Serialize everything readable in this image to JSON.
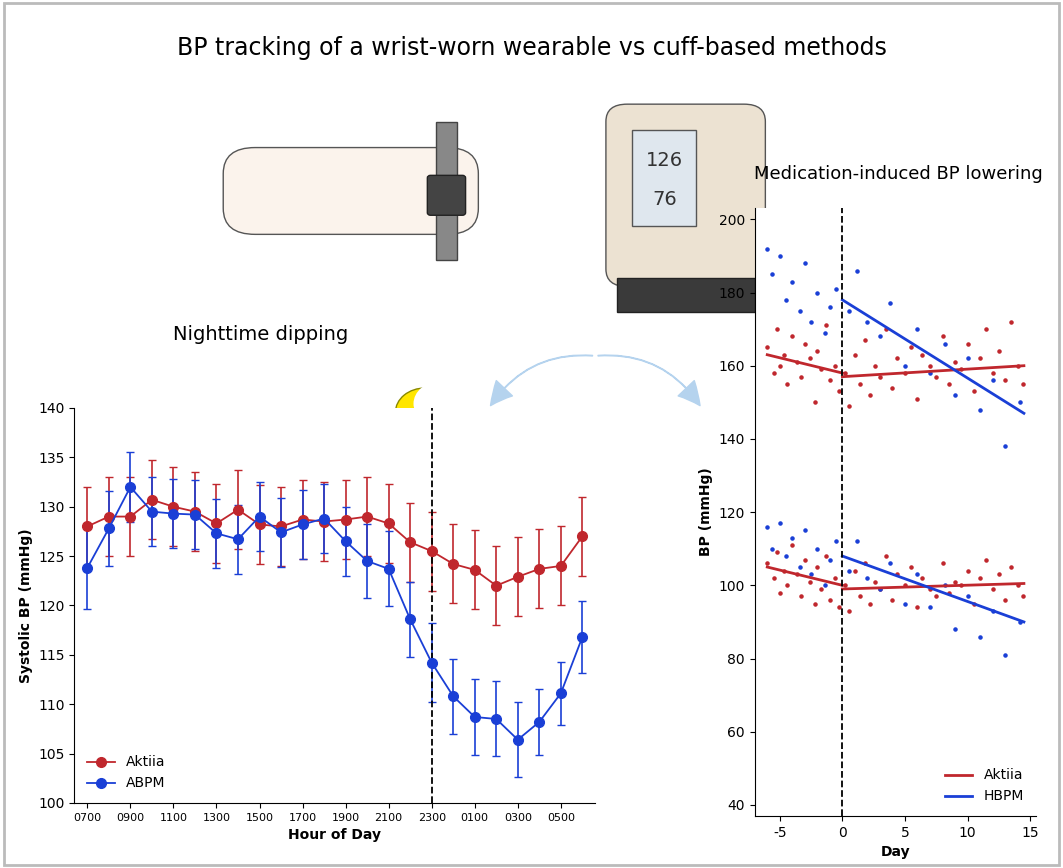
{
  "title": "BP tracking of a wrist-worn wearable vs cuff-based methods",
  "device_display": [
    "126",
    "76"
  ],
  "chart_data": [
    {
      "type": "line",
      "title": "Nighttime dipping",
      "x_label": "Hour of Day",
      "y_label": "Systolic BP (mmHg)",
      "categories": [
        "0700",
        null,
        "0900",
        null,
        "1100",
        null,
        "1300",
        null,
        "1500",
        null,
        "1700",
        null,
        "1900",
        null,
        "2100",
        null,
        "2300",
        null,
        "0100",
        null,
        "0300",
        null,
        "0500",
        null
      ],
      "vline_category": "2300",
      "ylim": [
        100,
        140
      ],
      "yticks": [
        100,
        105,
        110,
        115,
        120,
        125,
        130,
        135,
        140
      ],
      "legend": "lower left",
      "marker": "o",
      "series": [
        {
          "name": "Aktiia",
          "color": "#c0272d",
          "values": [
            128,
            129,
            129,
            130.7,
            130,
            129.5,
            128.3,
            129.7,
            128.2,
            128,
            128.7,
            128.5,
            128.7,
            129,
            128.3,
            126.4,
            125.5,
            124.2,
            123.6,
            122,
            122.9,
            123.7,
            124,
            127
          ],
          "errors": [
            4,
            4,
            4,
            4,
            4,
            4,
            4,
            4,
            4,
            4,
            4,
            4,
            4,
            4,
            4,
            4,
            4,
            4,
            4,
            4,
            4,
            4,
            4,
            4
          ]
        },
        {
          "name": "ABPM",
          "color": "#1a3fd6",
          "values": [
            123.8,
            127.8,
            132,
            129.5,
            129.3,
            129.2,
            127.3,
            126.7,
            129,
            127.4,
            128.2,
            128.8,
            126.5,
            124.5,
            123.7,
            118.6,
            114.2,
            110.8,
            108.7,
            108.5,
            106.4,
            108.2,
            111.1,
            116.8
          ],
          "errors": [
            4.2,
            3.8,
            3.5,
            3.5,
            3.5,
            3.5,
            3.5,
            3.5,
            3.5,
            3.5,
            3.5,
            3.5,
            3.5,
            3.7,
            3.8,
            3.8,
            4,
            3.8,
            3.8,
            3.8,
            3.8,
            3.3,
            3.2,
            3.6
          ]
        }
      ]
    },
    {
      "type": "scatter",
      "title": "Medication-induced BP lowering",
      "x_label": "Day",
      "y_label": "BP (mmHg)",
      "xlim": [
        -7,
        15.5
      ],
      "xticks": [
        -5,
        0,
        5,
        10,
        15
      ],
      "ylim": [
        37,
        203
      ],
      "yticks": [
        40,
        60,
        80,
        100,
        120,
        140,
        160,
        180,
        200
      ],
      "vline_x": 0,
      "legend": "lower right",
      "series": [
        {
          "name": "Aktiia",
          "color": "#c0272d",
          "points": [
            {
              "x": [
                -6,
                -5.5,
                -5.2,
                -5,
                -4.7,
                -4.4,
                -4,
                -3.6,
                -3.3,
                -3,
                -2.6,
                -2.2,
                -2,
                -1.7,
                -1.3,
                -1,
                -0.6,
                -0.3,
                0.2,
                0.5,
                1,
                1.4,
                1.8,
                2.2,
                2.6,
                3,
                3.5,
                4,
                4.4,
                5,
                5.5,
                6,
                6.4,
                7,
                7.5,
                8,
                8.5,
                9,
                9.5,
                10,
                10.5,
                11,
                11.5,
                12,
                12.5,
                13,
                13.5,
                14,
                14.4
              ],
              "values": [
                165,
                158,
                170,
                160,
                163,
                155,
                168,
                161,
                157,
                166,
                162,
                150,
                164,
                159,
                171,
                156,
                160,
                153,
                158,
                149,
                163,
                155,
                167,
                152,
                160,
                157,
                170,
                154,
                162,
                158,
                165,
                151,
                163,
                160,
                157,
                168,
                155,
                161,
                159,
                166,
                153,
                162,
                170,
                158,
                164,
                156,
                172,
                160,
                155
              ]
            },
            {
              "x": [
                -6,
                -5.5,
                -5.2,
                -5,
                -4.7,
                -4.4,
                -4,
                -3.6,
                -3.3,
                -3,
                -2.6,
                -2.2,
                -2,
                -1.7,
                -1.3,
                -1,
                -0.6,
                -0.3,
                0.2,
                0.5,
                1,
                1.4,
                1.8,
                2.2,
                2.6,
                3,
                3.5,
                4,
                4.4,
                5,
                5.5,
                6,
                6.4,
                7,
                7.5,
                8,
                8.5,
                9,
                9.5,
                10,
                10.5,
                11,
                11.5,
                12,
                12.5,
                13,
                13.5,
                14,
                14.4
              ],
              "values": [
                106,
                102,
                109,
                98,
                104,
                100,
                111,
                103,
                97,
                107,
                101,
                95,
                105,
                99,
                108,
                96,
                102,
                94,
                100,
                93,
                104,
                97,
                106,
                95,
                101,
                99,
                108,
                96,
                103,
                100,
                105,
                94,
                102,
                99,
                97,
                106,
                98,
                101,
                100,
                104,
                95,
                102,
                107,
                99,
                103,
                96,
                105,
                100,
                97
              ]
            }
          ],
          "trends": [
            {
              "x": [
                -6,
                0
              ],
              "values": [
                163,
                158
              ]
            },
            {
              "x": [
                0,
                14.5
              ],
              "values": [
                157,
                160
              ]
            },
            {
              "x": [
                -6,
                0
              ],
              "values": [
                105,
                100
              ]
            },
            {
              "x": [
                0,
                14.5
              ],
              "values": [
                99,
                100.5
              ]
            }
          ]
        },
        {
          "name": "HBPM",
          "color": "#1a3fd6",
          "points": [
            {
              "x": [
                -6,
                -5.6,
                -5,
                -4.5,
                -4,
                -3.4,
                -3,
                -2.5,
                -2,
                -1.4,
                -1,
                -0.5,
                0.5,
                1.2,
                2,
                3,
                3.8,
                5,
                6,
                7,
                8.2,
                9,
                10,
                11,
                12,
                13,
                14.2
              ],
              "values": [
                192,
                185,
                190,
                178,
                183,
                175,
                188,
                172,
                180,
                169,
                176,
                181,
                175,
                186,
                172,
                168,
                177,
                160,
                170,
                158,
                166,
                152,
                162,
                148,
                156,
                138,
                150
              ]
            },
            {
              "x": [
                -6,
                -5.6,
                -5,
                -4.5,
                -4,
                -3.4,
                -3,
                -2.5,
                -2,
                -1.4,
                -1,
                -0.5,
                0.5,
                1.2,
                2,
                3,
                3.8,
                5,
                6,
                7,
                8.2,
                9,
                10,
                11,
                12,
                13,
                14.2
              ],
              "values": [
                116,
                110,
                117,
                108,
                113,
                105,
                115,
                103,
                110,
                100,
                107,
                112,
                104,
                112,
                102,
                99,
                106,
                95,
                103,
                94,
                100,
                88,
                97,
                86,
                93,
                81,
                90
              ]
            }
          ],
          "trends": [
            {
              "x": [
                0,
                14.5
              ],
              "values": [
                178,
                147
              ]
            },
            {
              "x": [
                0,
                14.5
              ],
              "values": [
                108,
                90
              ]
            }
          ]
        }
      ]
    }
  ]
}
